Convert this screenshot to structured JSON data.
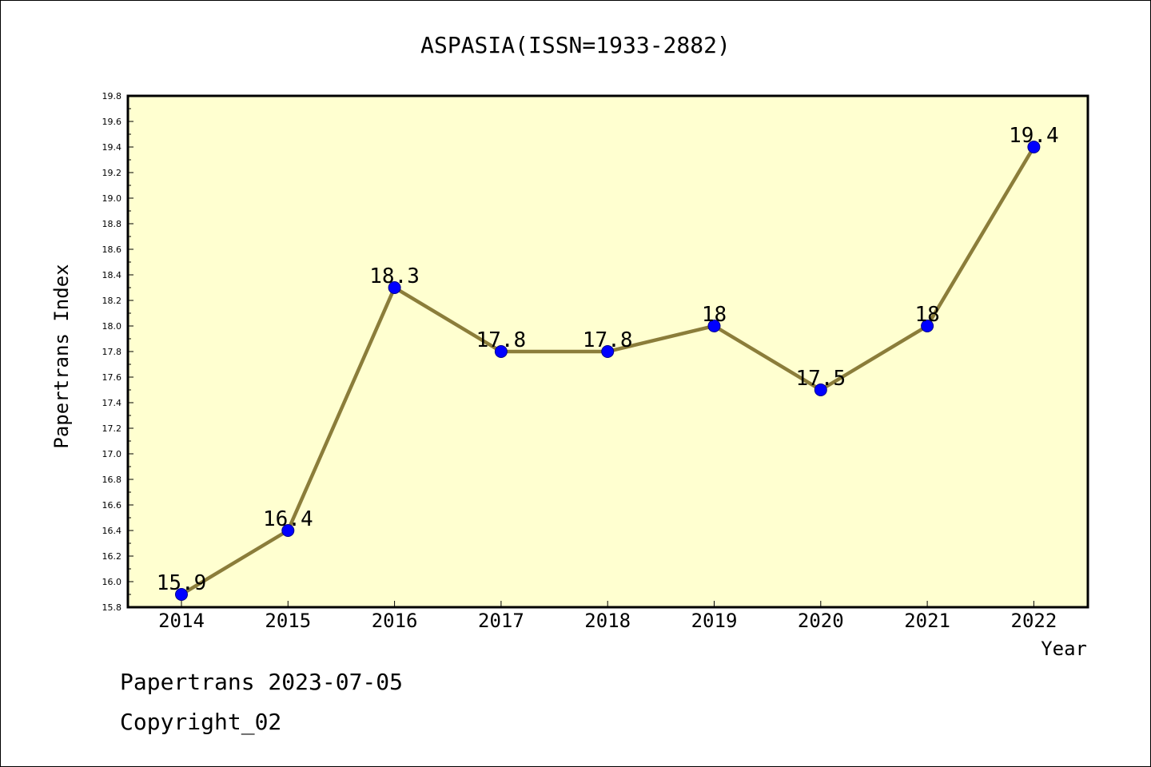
{
  "chart_data": {
    "type": "line",
    "title": "ASPASIA(ISSN=1933-2882)",
    "xlabel": "Year",
    "ylabel": "Papertrans Index",
    "categories": [
      "2014",
      "2015",
      "2016",
      "2017",
      "2018",
      "2019",
      "2020",
      "2021",
      "2022"
    ],
    "values": [
      15.9,
      16.4,
      18.3,
      17.8,
      17.8,
      18.0,
      17.5,
      18.0,
      19.4
    ],
    "data_labels": [
      "15.9",
      "16.4",
      "18.3",
      "17.8",
      "17.8",
      "18",
      "17.5",
      "18",
      "19.4"
    ],
    "ylim": [
      15.8,
      19.8
    ],
    "yticks": [
      "15.8",
      "16.0",
      "16.2",
      "16.4",
      "16.6",
      "16.8",
      "17.0",
      "17.2",
      "17.4",
      "17.6",
      "17.8",
      "18.0",
      "18.2",
      "18.4",
      "18.6",
      "18.8",
      "19.0",
      "19.2",
      "19.4",
      "19.6",
      "19.8"
    ],
    "grid": false,
    "legend": "none",
    "colors": {
      "plot_background": "#ffffd0",
      "line": "#8b7d3a",
      "marker": "#0000ff"
    }
  },
  "footer": {
    "line1": "Papertrans 2023-07-05",
    "line2": "Copyright_02"
  }
}
